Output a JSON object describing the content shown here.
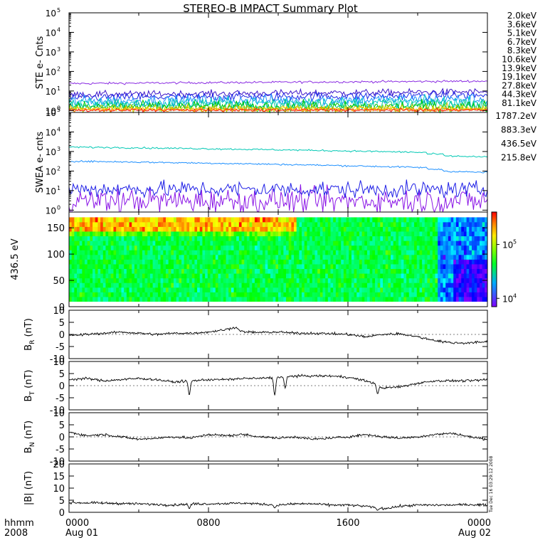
{
  "title": "STEREO-B IMPACT Summary Plot",
  "timestamp": "Tue Dec 16 03:29:12 2008",
  "time_axis": {
    "label_top": "hhmm",
    "label_bottom": "2008",
    "ticks": [
      {
        "value": 0,
        "top": "0000",
        "bottom": "Aug 01"
      },
      {
        "value": 8,
        "top": "0800",
        "bottom": ""
      },
      {
        "value": 16,
        "top": "1600",
        "bottom": ""
      },
      {
        "value": 24,
        "top": "0000",
        "bottom": "Aug 02"
      }
    ],
    "range_hours": [
      0,
      24
    ]
  },
  "chart_data": [
    {
      "type": "line",
      "panel": "ste",
      "ylabel": "STE e- Cnts",
      "yscale": "log",
      "ylim": [
        0.8,
        100000
      ],
      "yticks": [
        {
          "value": 1,
          "exp": "0"
        },
        {
          "value": 10,
          "exp": "1"
        },
        {
          "value": 100,
          "exp": "2"
        },
        {
          "value": 1000,
          "exp": "3"
        },
        {
          "value": 10000,
          "exp": "4"
        },
        {
          "value": 100000,
          "exp": "5"
        }
      ],
      "legend_position": "right",
      "series": [
        {
          "name": "2.0keV",
          "color": "#8a2be2",
          "start": 24,
          "end": 32,
          "noise": 0.04
        },
        {
          "name": "3.6keV",
          "color": "#3c14c8",
          "start": 6.5,
          "end": 9,
          "noise": 0.12
        },
        {
          "name": "5.1keV",
          "color": "#1e28e6",
          "start": 4.5,
          "end": 6,
          "noise": 0.15
        },
        {
          "name": "6.7keV",
          "color": "#1e90ff",
          "start": 3,
          "end": 3.8,
          "noise": 0.2
        },
        {
          "name": "8.3keV",
          "color": "#00c8c8",
          "start": 2.3,
          "end": 2.8,
          "noise": 0.2
        },
        {
          "name": "10.6keV",
          "color": "#00c896",
          "start": 1.9,
          "end": 2.1,
          "noise": 0.2
        },
        {
          "name": "13.9keV",
          "color": "#00c800",
          "start": 1.5,
          "end": 1.6,
          "noise": 0.2
        },
        {
          "name": "19.1keV",
          "color": "#c8c800",
          "start": 1.3,
          "end": 1.3,
          "noise": 0.15
        },
        {
          "name": "27.8keV",
          "color": "#f0d200",
          "start": 1.2,
          "end": 1.2,
          "noise": 0.1
        },
        {
          "name": "44.3keV",
          "color": "#ff8c00",
          "start": 1.1,
          "end": 1.1,
          "noise": 0.08
        },
        {
          "name": "81.1keV",
          "color": "#ff1e1e",
          "start": 1.05,
          "end": 1.05,
          "noise": 0.05
        }
      ]
    },
    {
      "type": "line",
      "panel": "swea",
      "ylabel": "SWEA e- cnts",
      "yscale": "log",
      "ylim": [
        0.8,
        100000
      ],
      "yticks": [
        {
          "value": 1,
          "exp": "0"
        },
        {
          "value": 10,
          "exp": "1"
        },
        {
          "value": 100,
          "exp": "2"
        },
        {
          "value": 1000,
          "exp": "3"
        },
        {
          "value": 10000,
          "exp": "4"
        },
        {
          "value": 100000,
          "exp": "5"
        }
      ],
      "legend_position": "right",
      "series": [
        {
          "name": "1787.2eV",
          "color": "#8a14e6",
          "start": 3,
          "end": 3,
          "noise": 0.45
        },
        {
          "name": "883.3eV",
          "color": "#1e1ee6",
          "start": 12,
          "end": 11,
          "noise": 0.3
        },
        {
          "name": "436.5eV",
          "color": "#1e90ff",
          "start": 320,
          "end": 120,
          "noise": 0.03
        },
        {
          "name": "215.8eV",
          "color": "#00c8b4",
          "start": 1700,
          "end": 750,
          "noise": 0.03
        }
      ]
    },
    {
      "type": "heatmap",
      "panel": "pad",
      "ylabel": "436.5 eV",
      "ylim": [
        0,
        180
      ],
      "yticks": [
        0,
        50,
        100,
        150
      ],
      "colorbar": {
        "scale": "log",
        "range": [
          7000,
          400000
        ],
        "ticks": [
          {
            "value": 10000,
            "exp": "4"
          },
          {
            "value": 100000,
            "exp": "5"
          }
        ]
      }
    },
    {
      "type": "line",
      "panel": "br",
      "ylabel": "B",
      "ylabel_sub": "R",
      "ylabel_unit": "(nT)",
      "ylim": [
        -10,
        10
      ],
      "yticks": [
        -10,
        -5,
        0,
        5,
        10
      ],
      "knots": [
        [
          0,
          -0.5
        ],
        [
          1,
          0
        ],
        [
          2,
          0.5
        ],
        [
          3,
          1
        ],
        [
          4,
          0.5
        ],
        [
          5,
          0
        ],
        [
          6,
          0.5
        ],
        [
          7,
          0.5
        ],
        [
          8,
          1
        ],
        [
          9,
          2
        ],
        [
          9.5,
          3
        ],
        [
          10,
          1
        ],
        [
          11,
          0.8
        ],
        [
          12,
          1
        ],
        [
          13,
          0.5
        ],
        [
          14,
          0.5
        ],
        [
          15,
          0.3
        ],
        [
          16,
          0
        ],
        [
          17,
          -1
        ],
        [
          18,
          0
        ],
        [
          19,
          0.3
        ],
        [
          20,
          -1
        ],
        [
          21,
          -2.5
        ],
        [
          22,
          -3.5
        ],
        [
          23,
          -3.5
        ],
        [
          24,
          -3
        ]
      ]
    },
    {
      "type": "line",
      "panel": "bt",
      "ylabel": "B",
      "ylabel_sub": "T",
      "ylabel_unit": "(nT)",
      "ylim": [
        -10,
        10
      ],
      "yticks": [
        -10,
        -5,
        0,
        5,
        10
      ],
      "knots": [
        [
          0,
          2.5
        ],
        [
          1,
          3
        ],
        [
          2,
          2
        ],
        [
          3,
          2.5
        ],
        [
          4,
          3
        ],
        [
          5,
          2.5
        ],
        [
          6,
          1.5
        ],
        [
          7,
          2
        ],
        [
          8,
          2.5
        ],
        [
          9,
          2.5
        ],
        [
          10,
          3
        ],
        [
          11,
          3
        ],
        [
          12,
          3.5
        ],
        [
          13,
          4
        ],
        [
          14,
          4
        ],
        [
          15,
          4
        ],
        [
          16,
          3.5
        ],
        [
          17,
          2
        ],
        [
          17.5,
          1
        ],
        [
          18,
          -1
        ],
        [
          19,
          -0.5
        ],
        [
          20,
          1
        ],
        [
          21,
          2
        ],
        [
          22,
          2
        ],
        [
          23,
          2
        ],
        [
          24,
          2.5
        ]
      ],
      "dips": [
        [
          6.9,
          -4
        ],
        [
          11.8,
          -4
        ],
        [
          17.7,
          -3.5
        ],
        [
          12.4,
          -1
        ]
      ]
    },
    {
      "type": "line",
      "panel": "bn",
      "ylabel": "B",
      "ylabel_sub": "N",
      "ylabel_unit": "(nT)",
      "ylim": [
        -10,
        10
      ],
      "yticks": [
        -10,
        -5,
        0,
        5,
        10
      ],
      "knots": [
        [
          0,
          2
        ],
        [
          1,
          0.5
        ],
        [
          2,
          1
        ],
        [
          3,
          0
        ],
        [
          4,
          -1
        ],
        [
          5,
          -0.5
        ],
        [
          6,
          0
        ],
        [
          7,
          -0.5
        ],
        [
          8,
          1
        ],
        [
          9,
          0.5
        ],
        [
          10,
          1
        ],
        [
          11,
          0
        ],
        [
          12,
          -0.5
        ],
        [
          13,
          0
        ],
        [
          14,
          -1
        ],
        [
          15,
          -0.5
        ],
        [
          16,
          0
        ],
        [
          17,
          1
        ],
        [
          18,
          0
        ],
        [
          19,
          -0.5
        ],
        [
          20,
          0
        ],
        [
          21,
          1
        ],
        [
          22,
          1.5
        ],
        [
          23,
          0
        ],
        [
          24,
          -1
        ]
      ]
    },
    {
      "type": "line",
      "panel": "bmag",
      "ylabel": "|B|",
      "ylabel_unit": "(nT)",
      "ylim": [
        0,
        20
      ],
      "yticks": [
        0,
        5,
        10,
        15,
        20
      ],
      "knots": [
        [
          0,
          4
        ],
        [
          2,
          3.8
        ],
        [
          4,
          3.5
        ],
        [
          6,
          3
        ],
        [
          7,
          3.5
        ],
        [
          8,
          3.5
        ],
        [
          10,
          3.8
        ],
        [
          12,
          3
        ],
        [
          13,
          3.5
        ],
        [
          14,
          3.5
        ],
        [
          15,
          3
        ],
        [
          16,
          3
        ],
        [
          17,
          2.5
        ],
        [
          18,
          1.5
        ],
        [
          19,
          2.5
        ],
        [
          20,
          3
        ],
        [
          22,
          3
        ],
        [
          23,
          3.2
        ],
        [
          24,
          3
        ]
      ],
      "dips": [
        [
          6.9,
          1.5
        ],
        [
          11.8,
          1.8
        ],
        [
          17.7,
          0.8
        ]
      ]
    }
  ]
}
